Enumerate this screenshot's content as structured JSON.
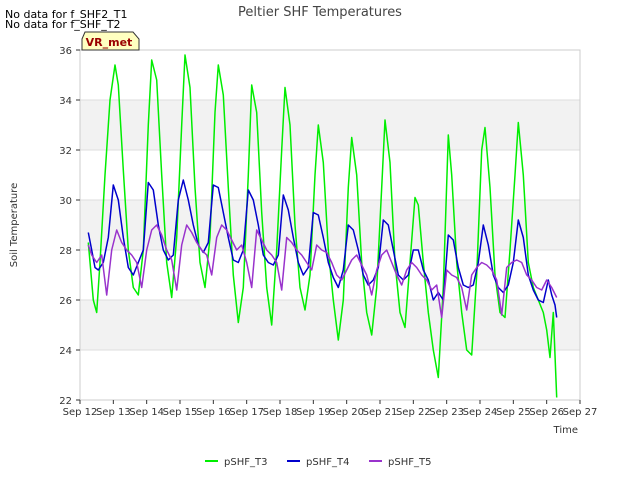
{
  "chart_data": {
    "type": "line",
    "title": "Peltier SHF Temperatures",
    "xlabel": "Time",
    "ylabel": "Soil Temperature",
    "xlim": [
      12,
      27
    ],
    "ylim": [
      22,
      36
    ],
    "x_ticks": [
      12,
      13,
      14,
      15,
      16,
      17,
      18,
      19,
      20,
      21,
      22,
      23,
      24,
      25,
      26,
      27
    ],
    "x_tick_labels": [
      "Sep 12",
      "Sep 13",
      "Sep 14",
      "Sep 15",
      "Sep 16",
      "Sep 17",
      "Sep 18",
      "Sep 19",
      "Sep 20",
      "Sep 21",
      "Sep 22",
      "Sep 23",
      "Sep 24",
      "Sep 25",
      "Sep 26",
      "Sep 27"
    ],
    "y_ticks": [
      22,
      24,
      26,
      28,
      30,
      32,
      34,
      36
    ],
    "grid": true,
    "legend_position": "bottom",
    "annotations": [
      "No data for f_SHF2_T1",
      "No data for f_SHF_T2"
    ],
    "badge": "VR_met",
    "series": [
      {
        "name": "pSHF_T3",
        "color": "#00ee00",
        "x": [
          12.25,
          12.4,
          12.5,
          12.6,
          12.75,
          12.9,
          13.05,
          13.15,
          13.3,
          13.45,
          13.6,
          13.75,
          13.9,
          14.05,
          14.15,
          14.3,
          14.45,
          14.6,
          14.75,
          14.9,
          15.05,
          15.15,
          15.3,
          15.45,
          15.6,
          15.75,
          15.9,
          16.05,
          16.15,
          16.3,
          16.45,
          16.6,
          16.75,
          16.9,
          17.05,
          17.15,
          17.3,
          17.45,
          17.6,
          17.75,
          17.9,
          18.05,
          18.15,
          18.3,
          18.45,
          18.6,
          18.75,
          18.9,
          19.05,
          19.15,
          19.3,
          19.45,
          19.6,
          19.75,
          19.9,
          20.05,
          20.15,
          20.3,
          20.45,
          20.6,
          20.75,
          20.9,
          21.05,
          21.15,
          21.3,
          21.45,
          21.6,
          21.75,
          21.9,
          22.05,
          22.15,
          22.3,
          22.45,
          22.6,
          22.75,
          22.9,
          23.05,
          23.15,
          23.3,
          23.45,
          23.6,
          23.75,
          23.9,
          24.05,
          24.15,
          24.3,
          24.45,
          24.6,
          24.75,
          24.9,
          25.05,
          25.15,
          25.3,
          25.45,
          25.6,
          25.75,
          25.9,
          26.0,
          26.1,
          26.2,
          26.3
        ],
        "y": [
          28.3,
          26.0,
          25.5,
          27.5,
          31.0,
          34.0,
          35.4,
          34.6,
          31.2,
          28.0,
          26.5,
          26.2,
          28.0,
          33.0,
          35.6,
          34.8,
          31.0,
          27.5,
          26.1,
          28.5,
          33.0,
          35.8,
          34.5,
          30.5,
          27.5,
          26.5,
          28.5,
          33.5,
          35.4,
          34.2,
          30.5,
          27.0,
          25.1,
          26.5,
          31.0,
          34.6,
          33.5,
          29.5,
          26.5,
          25.0,
          28.0,
          32.0,
          34.5,
          33.0,
          29.0,
          26.5,
          25.6,
          27.0,
          31.0,
          33.0,
          31.5,
          28.0,
          26.0,
          24.4,
          26.0,
          30.5,
          32.5,
          31.0,
          27.5,
          25.5,
          24.6,
          26.5,
          30.5,
          33.2,
          31.5,
          27.5,
          25.5,
          24.9,
          27.5,
          30.1,
          29.8,
          27.5,
          25.5,
          24.0,
          22.9,
          26.5,
          32.6,
          31.0,
          27.5,
          25.5,
          24.0,
          23.8,
          27.0,
          32.0,
          32.9,
          30.5,
          27.0,
          25.5,
          25.3,
          28.0,
          31.0,
          33.1,
          31.0,
          27.5,
          26.5,
          26.0,
          25.5,
          24.8,
          23.7,
          25.5,
          22.1
        ]
      },
      {
        "name": "pSHF_T4",
        "color": "#0000cc",
        "x": [
          12.25,
          12.35,
          12.45,
          12.55,
          12.7,
          12.85,
          13.0,
          13.15,
          13.3,
          13.45,
          13.6,
          13.75,
          13.9,
          14.05,
          14.2,
          14.35,
          14.5,
          14.65,
          14.8,
          14.95,
          15.1,
          15.25,
          15.4,
          15.55,
          15.7,
          15.85,
          16.0,
          16.15,
          16.3,
          16.45,
          16.6,
          16.75,
          16.9,
          17.05,
          17.2,
          17.35,
          17.5,
          17.65,
          17.8,
          17.95,
          18.1,
          18.25,
          18.4,
          18.55,
          18.7,
          18.85,
          19.0,
          19.15,
          19.3,
          19.45,
          19.6,
          19.75,
          19.9,
          20.05,
          20.2,
          20.35,
          20.5,
          20.65,
          20.8,
          20.95,
          21.1,
          21.25,
          21.4,
          21.55,
          21.7,
          21.85,
          22.0,
          22.15,
          22.3,
          22.45,
          22.6,
          22.75,
          22.9,
          23.05,
          23.2,
          23.35,
          23.5,
          23.65,
          23.8,
          23.95,
          24.1,
          24.25,
          24.4,
          24.55,
          24.7,
          24.85,
          25.0,
          25.15,
          25.3,
          25.45,
          25.6,
          25.75,
          25.9,
          26.05,
          26.15,
          26.25,
          26.3
        ],
        "y": [
          28.7,
          28.0,
          27.3,
          27.2,
          27.5,
          28.5,
          30.6,
          30.0,
          28.5,
          27.3,
          27.0,
          27.5,
          28.0,
          30.7,
          30.4,
          29.0,
          28.0,
          27.6,
          27.8,
          30.0,
          30.8,
          30.0,
          29.0,
          28.2,
          27.9,
          28.3,
          30.6,
          30.5,
          29.5,
          28.5,
          27.6,
          27.5,
          28.0,
          30.4,
          30.0,
          29.0,
          27.8,
          27.5,
          27.4,
          27.8,
          30.2,
          29.6,
          28.5,
          27.5,
          27.0,
          27.3,
          29.5,
          29.4,
          28.5,
          27.5,
          26.9,
          26.5,
          27.2,
          29.0,
          28.8,
          28.0,
          27.0,
          26.6,
          26.8,
          27.3,
          29.2,
          29.0,
          28.0,
          27.0,
          26.8,
          27.0,
          28.0,
          28.0,
          27.2,
          26.8,
          26.0,
          26.3,
          26.0,
          28.6,
          28.4,
          27.3,
          26.6,
          26.5,
          26.6,
          27.5,
          29.0,
          28.2,
          27.0,
          26.5,
          26.3,
          26.6,
          27.5,
          29.2,
          28.5,
          27.0,
          26.4,
          26.0,
          25.9,
          26.8,
          26.2,
          25.8,
          25.3
        ]
      },
      {
        "name": "pSHF_T5",
        "color": "#9933cc",
        "x": [
          12.25,
          12.35,
          12.5,
          12.65,
          12.8,
          12.95,
          13.1,
          13.25,
          13.4,
          13.55,
          13.7,
          13.85,
          14.0,
          14.15,
          14.3,
          14.45,
          14.6,
          14.75,
          14.9,
          15.05,
          15.2,
          15.35,
          15.5,
          15.65,
          15.8,
          15.95,
          16.1,
          16.25,
          16.4,
          16.55,
          16.7,
          16.85,
          17.0,
          17.15,
          17.3,
          17.45,
          17.6,
          17.75,
          17.9,
          18.05,
          18.2,
          18.35,
          18.5,
          18.65,
          18.8,
          18.95,
          19.1,
          19.25,
          19.4,
          19.55,
          19.7,
          19.85,
          20.0,
          20.15,
          20.3,
          20.45,
          20.6,
          20.75,
          20.9,
          21.05,
          21.2,
          21.35,
          21.5,
          21.65,
          21.8,
          21.95,
          22.1,
          22.25,
          22.4,
          22.55,
          22.7,
          22.85,
          23.0,
          23.15,
          23.3,
          23.45,
          23.6,
          23.75,
          23.9,
          24.05,
          24.2,
          24.35,
          24.5,
          24.65,
          24.8,
          24.95,
          25.1,
          25.25,
          25.4,
          25.55,
          25.7,
          25.85,
          26.0,
          26.15,
          26.3
        ],
        "y": [
          28.2,
          27.8,
          27.5,
          27.8,
          26.2,
          28.0,
          28.8,
          28.3,
          28.0,
          27.8,
          27.5,
          26.5,
          28.0,
          28.8,
          29.0,
          28.6,
          28.0,
          27.6,
          26.4,
          28.2,
          29.0,
          28.7,
          28.3,
          28.0,
          27.8,
          27.0,
          28.5,
          29.0,
          28.8,
          28.4,
          28.0,
          28.2,
          27.5,
          26.5,
          28.8,
          28.4,
          28.0,
          27.8,
          27.5,
          26.4,
          28.5,
          28.3,
          28.0,
          27.8,
          27.5,
          27.2,
          28.2,
          28.0,
          27.9,
          27.5,
          27.0,
          26.8,
          27.2,
          27.6,
          27.8,
          27.4,
          27.0,
          26.2,
          27.2,
          27.8,
          28.0,
          27.5,
          27.0,
          26.6,
          27.2,
          27.5,
          27.3,
          27.0,
          26.8,
          26.4,
          26.6,
          25.3,
          27.2,
          27.0,
          26.9,
          26.5,
          25.6,
          27.0,
          27.3,
          27.5,
          27.4,
          27.2,
          26.8,
          25.4,
          27.3,
          27.5,
          27.6,
          27.5,
          27.0,
          26.8,
          26.5,
          26.4,
          26.8,
          26.5,
          26.1
        ]
      }
    ]
  }
}
